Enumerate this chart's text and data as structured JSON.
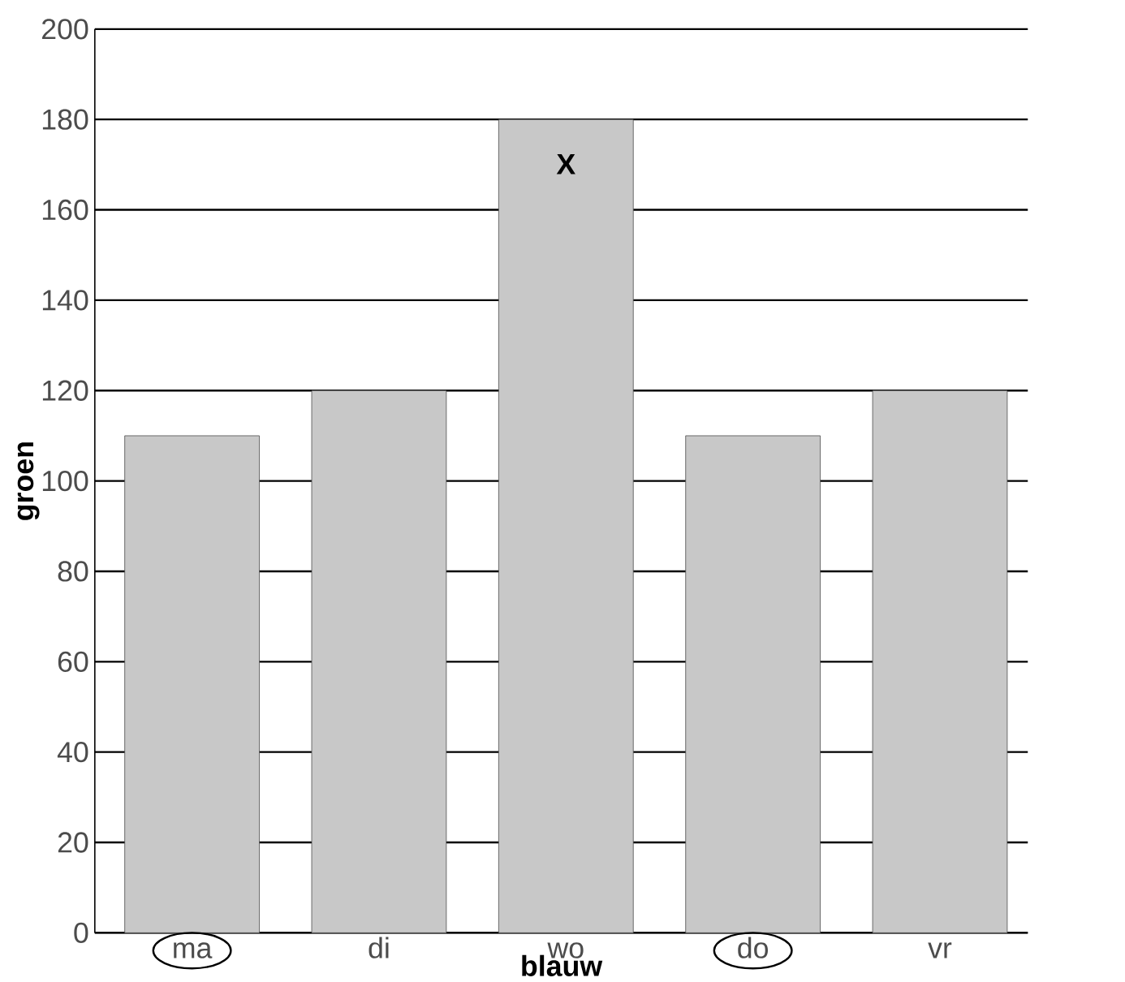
{
  "chart_data": {
    "type": "bar",
    "xlabel": "blauw",
    "ylabel": "groen",
    "categories": [
      "ma",
      "di",
      "wo",
      "do",
      "vr"
    ],
    "values": [
      110,
      120,
      180,
      110,
      120
    ],
    "color": "#c8c8c8",
    "ylim": [
      0,
      200
    ],
    "yticks": [
      0,
      20,
      40,
      60,
      80,
      100,
      120,
      140,
      160,
      180,
      200
    ],
    "grid": "y",
    "annotations": [
      "X"
    ]
  }
}
